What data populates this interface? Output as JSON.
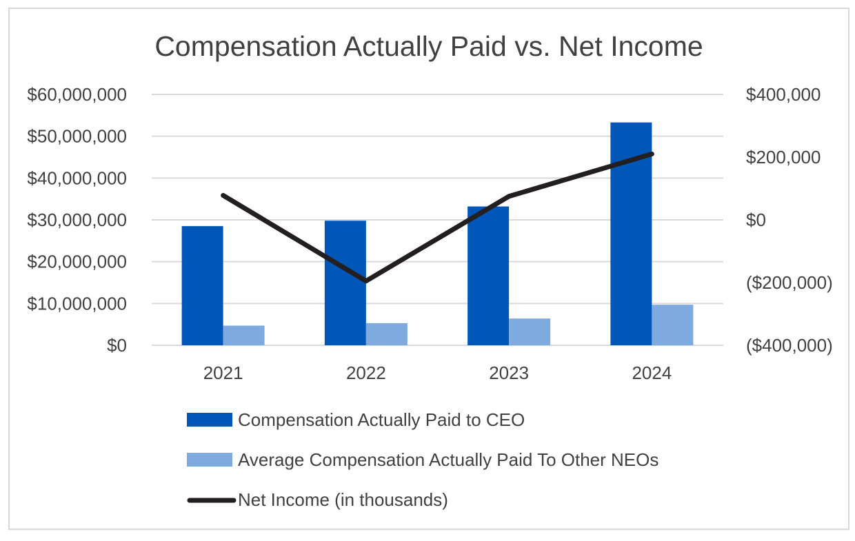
{
  "chart_data": {
    "type": "bar",
    "title": "Compensation Actually Paid vs. Net Income",
    "categories": [
      "2021",
      "2022",
      "2023",
      "2024"
    ],
    "xlabel": "",
    "ylabel": "",
    "grid": true,
    "legend_position": "bottom",
    "y_left": {
      "ylim": [
        0,
        60000000
      ],
      "ticks": [
        0,
        10000000,
        20000000,
        30000000,
        40000000,
        50000000,
        60000000
      ],
      "tick_labels": [
        "$0",
        "$10,000,000",
        "$20,000,000",
        "$30,000,000",
        "$40,000,000",
        "$50,000,000",
        "$60,000,000"
      ]
    },
    "y_right": {
      "ylim": [
        -400000,
        400000
      ],
      "ticks": [
        -400000,
        -200000,
        0,
        200000,
        400000
      ],
      "tick_labels": [
        "($400,000)",
        "($200,000)",
        "$0",
        "$200,000",
        "$400,000"
      ]
    },
    "series": [
      {
        "name": "Compensation Actually Paid to CEO",
        "type": "bar",
        "axis": "left",
        "color": "#0057b8",
        "values": [
          28500000,
          29800000,
          33200000,
          53300000
        ]
      },
      {
        "name": "Average Compensation Actually Paid To Other NEOs",
        "type": "bar",
        "axis": "left",
        "color": "#7faadf",
        "values": [
          4700000,
          5300000,
          6400000,
          9700000
        ]
      },
      {
        "name": "Net Income (in thousands)",
        "type": "line",
        "axis": "right",
        "color": "#231f20",
        "values": [
          78000,
          -195000,
          75000,
          210000
        ]
      }
    ]
  }
}
